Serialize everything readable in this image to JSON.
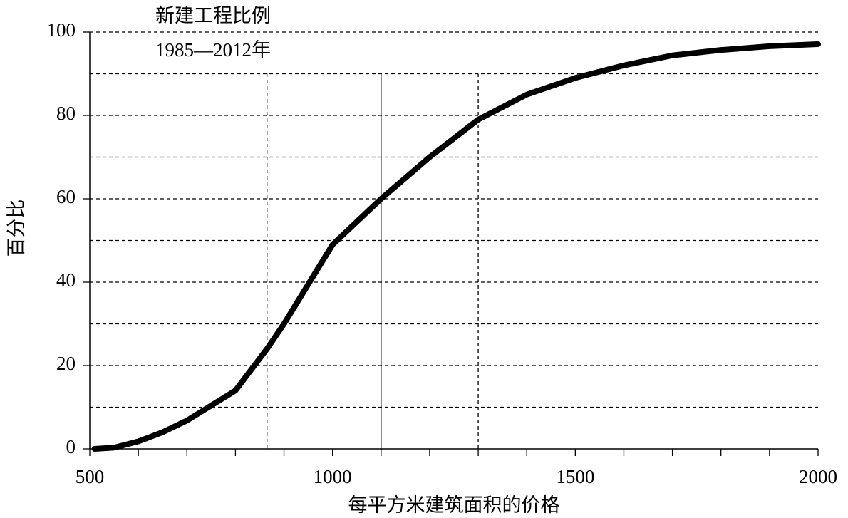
{
  "chart_data": {
    "type": "line",
    "title": "新建工程比例",
    "subtitle": "1985—2012年",
    "x_label": "每平方米建筑面积的价格",
    "y_label": "百分比",
    "x": [
      510,
      550,
      600,
      650,
      700,
      800,
      865,
      900,
      1000,
      1100,
      1200,
      1300,
      1400,
      1500,
      1600,
      1700,
      1800,
      1900,
      2000
    ],
    "series": [
      {
        "name": "新建工程比例",
        "color": "#000000",
        "values": [
          0,
          0.3,
          1.8,
          4,
          6.8,
          14,
          24,
          30,
          49,
          60,
          70,
          79,
          85,
          89,
          92,
          94.4,
          95.7,
          96.6,
          97.1
        ]
      }
    ],
    "xlim": [
      500,
      2000
    ],
    "xticks": [
      500,
      1000,
      1500,
      2000
    ],
    "xminor_ticks": [
      600,
      700,
      800,
      900,
      1100,
      1200,
      1300,
      1400,
      1600,
      1700,
      1800,
      1900
    ],
    "ylim": [
      0,
      100
    ],
    "yticks": [
      0,
      20,
      40,
      60,
      80,
      100
    ],
    "yminor_ticks": [
      10,
      30,
      50,
      70,
      90
    ],
    "grid": true,
    "reference_lines": [
      {
        "x": 865,
        "ymax": 90,
        "style": "dashed"
      },
      {
        "x": 1100,
        "ymax": 90,
        "style": "solid"
      },
      {
        "x": 1300,
        "ymax": 90,
        "style": "dashed"
      }
    ]
  }
}
